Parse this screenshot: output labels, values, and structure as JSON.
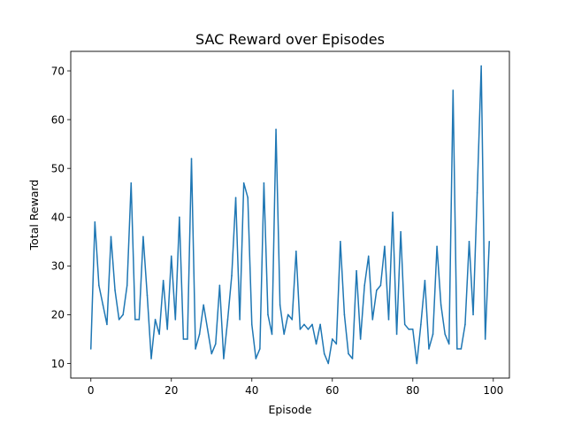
{
  "chart_data": {
    "type": "line",
    "title": "SAC Reward over Episodes",
    "xlabel": "Episode",
    "ylabel": "Total Reward",
    "xlim": [
      -5,
      104
    ],
    "ylim": [
      7,
      74
    ],
    "xticks": [
      0,
      20,
      40,
      60,
      80,
      100
    ],
    "yticks": [
      10,
      20,
      30,
      40,
      50,
      60,
      70
    ],
    "grid": false,
    "line_color": "#1f77b4",
    "series": [
      {
        "x": [
          0,
          1,
          2,
          3,
          4,
          5,
          6,
          7,
          8,
          9,
          10,
          11,
          12,
          13,
          14,
          15,
          16,
          17,
          18,
          19,
          20,
          21,
          22,
          23,
          24,
          25,
          26,
          27,
          28,
          29,
          30,
          31,
          32,
          33,
          34,
          35,
          36,
          37,
          38,
          39,
          40,
          41,
          42,
          43,
          44,
          45,
          46,
          47,
          48,
          49,
          50,
          51,
          52,
          53,
          54,
          55,
          56,
          57,
          58,
          59,
          60,
          61,
          62,
          63,
          64,
          65,
          66,
          67,
          68,
          69,
          70,
          71,
          72,
          73,
          74,
          75,
          76,
          77,
          78,
          79,
          80,
          81,
          82,
          83,
          84,
          85,
          86,
          87,
          88,
          89,
          90,
          91,
          92,
          93,
          94,
          95,
          96,
          97,
          98,
          99
        ],
        "values": [
          13,
          39,
          26,
          22,
          18,
          36,
          25,
          19,
          20,
          26,
          47,
          19,
          19,
          36,
          24,
          11,
          19,
          16,
          27,
          17,
          32,
          19,
          40,
          15,
          15,
          52,
          13,
          16,
          22,
          17,
          12,
          14,
          26,
          11,
          19,
          28,
          44,
          19,
          47,
          44,
          18,
          11,
          13,
          47,
          20,
          16,
          58,
          22,
          16,
          20,
          19,
          33,
          17,
          18,
          17,
          18,
          14,
          18,
          12,
          10,
          15,
          14,
          35,
          20,
          12,
          11,
          29,
          15,
          26,
          32,
          19,
          25,
          26,
          34,
          19,
          41,
          16,
          37,
          18,
          17,
          17,
          10,
          18,
          27,
          13,
          16,
          34,
          22,
          16,
          14,
          66,
          13,
          13,
          18,
          35,
          20,
          45,
          71,
          15,
          35
        ]
      }
    ]
  }
}
